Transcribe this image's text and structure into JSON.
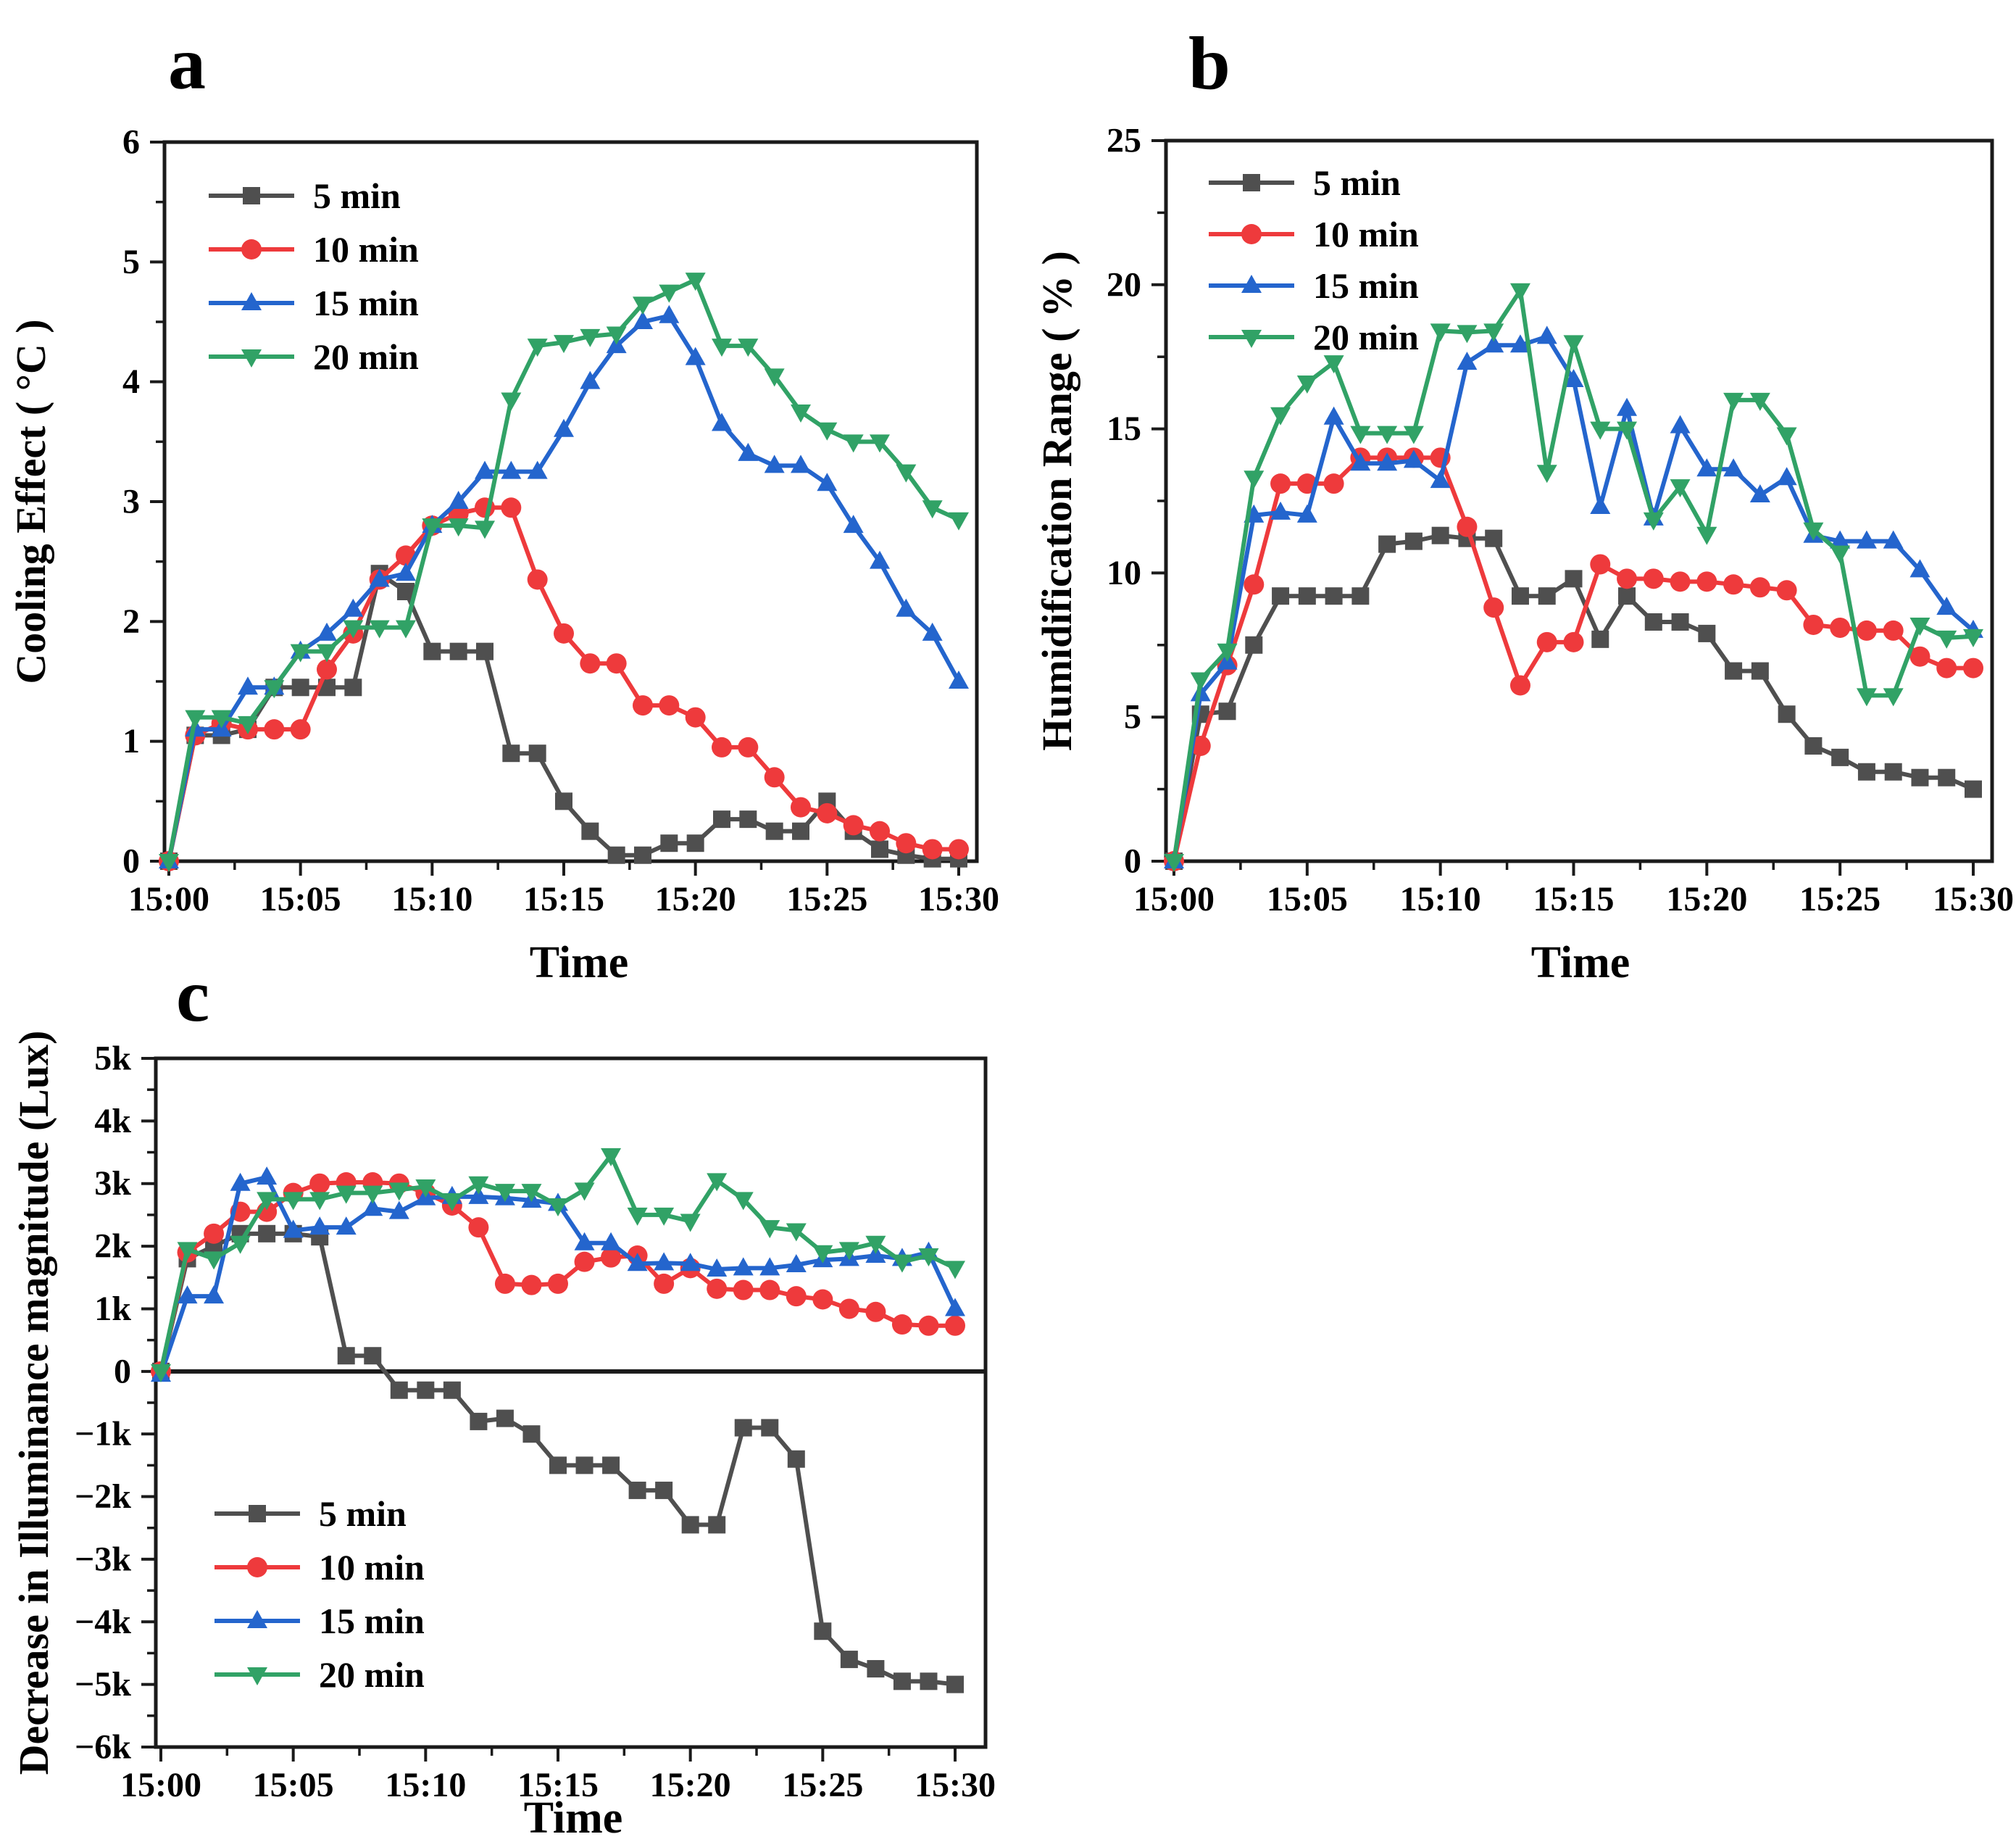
{
  "page": {
    "background": "#ffffff"
  },
  "colors": {
    "frame": "#1a1a1a",
    "series_5min": "#4f4f4f",
    "series_10min": "#ee3a3c",
    "series_15min": "#2465cd",
    "series_20min": "#31a266"
  },
  "chart_data": [
    {
      "type": "line",
      "panel_label": "a",
      "ylabel": "Cooling Effect ( °C )",
      "xlabel": "Time",
      "ylim": [
        0,
        6
      ],
      "grid": false,
      "legend_position": "top-left",
      "y_ticks": [
        {
          "v": 0,
          "label": "0"
        },
        {
          "v": 1,
          "label": "1"
        },
        {
          "v": 2,
          "label": "2"
        },
        {
          "v": 3,
          "label": "3"
        },
        {
          "v": 4,
          "label": "4"
        },
        {
          "v": 5,
          "label": "5"
        },
        {
          "v": 6,
          "label": "6"
        }
      ],
      "x_tick_indices": [
        0,
        5,
        10,
        15,
        20,
        25,
        30
      ],
      "x_tick_labels": [
        "15:00",
        "15:05",
        "15:10",
        "15:15",
        "15:20",
        "15:25",
        "15:30"
      ],
      "zero_line": false,
      "series": [
        {
          "name": "5  min",
          "marker": "square",
          "color": "#4f4f4f",
          "values": [
            0,
            1.05,
            1.05,
            1.1,
            1.45,
            1.45,
            1.45,
            1.45,
            2.4,
            2.25,
            1.75,
            1.75,
            1.75,
            0.9,
            0.9,
            0.5,
            0.25,
            0.05,
            0.05,
            0.15,
            0.15,
            0.35,
            0.35,
            0.25,
            0.25,
            0.5,
            0.25,
            0.1,
            0.05,
            0.02,
            0.02
          ]
        },
        {
          "name": "10 min",
          "marker": "circle",
          "color": "#ee3a3c",
          "values": [
            0,
            1.05,
            1.15,
            1.1,
            1.1,
            1.1,
            1.6,
            1.9,
            2.35,
            2.55,
            2.8,
            2.9,
            2.95,
            2.95,
            2.35,
            1.9,
            1.65,
            1.65,
            1.3,
            1.3,
            1.2,
            0.95,
            0.95,
            0.7,
            0.45,
            0.4,
            0.3,
            0.25,
            0.15,
            0.1,
            0.1
          ]
        },
        {
          "name": "15 min",
          "marker": "triangle-up",
          "color": "#2465cd",
          "values": [
            0,
            1.1,
            1.1,
            1.45,
            1.45,
            1.75,
            1.9,
            2.1,
            2.35,
            2.4,
            2.8,
            3.0,
            3.25,
            3.25,
            3.25,
            3.6,
            4.0,
            4.3,
            4.5,
            4.55,
            4.2,
            3.65,
            3.4,
            3.3,
            3.3,
            3.15,
            2.8,
            2.5,
            2.1,
            1.9,
            1.5
          ]
        },
        {
          "name": "20 min",
          "marker": "triangle-down",
          "color": "#31a266",
          "values": [
            0,
            1.2,
            1.2,
            1.15,
            1.45,
            1.75,
            1.75,
            1.95,
            1.95,
            1.95,
            2.8,
            2.8,
            2.78,
            3.85,
            4.3,
            4.33,
            4.38,
            4.4,
            4.65,
            4.75,
            4.85,
            4.3,
            4.3,
            4.05,
            3.75,
            3.6,
            3.5,
            3.5,
            3.25,
            2.95,
            2.85
          ]
        }
      ]
    },
    {
      "type": "line",
      "panel_label": "b",
      "ylabel": "Humidification Range ( % )",
      "xlabel": "Time",
      "ylim": [
        0,
        25
      ],
      "grid": false,
      "legend_position": "top-left",
      "y_ticks": [
        {
          "v": 0,
          "label": "0"
        },
        {
          "v": 5,
          "label": "5"
        },
        {
          "v": 10,
          "label": "10"
        },
        {
          "v": 15,
          "label": "15"
        },
        {
          "v": 20,
          "label": "20"
        },
        {
          "v": 25,
          "label": "25"
        }
      ],
      "x_tick_indices": [
        0,
        5,
        10,
        15,
        20,
        25,
        30
      ],
      "x_tick_labels": [
        "15:00",
        "15:05",
        "15:10",
        "15:15",
        "15:20",
        "15:25",
        "15:30"
      ],
      "zero_line": false,
      "series": [
        {
          "name": "5  min",
          "marker": "square",
          "color": "#4f4f4f",
          "values": [
            0,
            5.1,
            5.2,
            7.5,
            9.2,
            9.2,
            9.2,
            9.2,
            11.0,
            11.1,
            11.3,
            11.2,
            11.2,
            9.2,
            9.2,
            9.8,
            7.7,
            9.2,
            8.3,
            8.3,
            7.9,
            6.6,
            6.6,
            5.1,
            4.0,
            3.6,
            3.1,
            3.1,
            2.9,
            2.9,
            2.5
          ]
        },
        {
          "name": "10 min",
          "marker": "circle",
          "color": "#ee3a3c",
          "values": [
            0,
            4.0,
            6.8,
            9.6,
            13.1,
            13.1,
            13.1,
            14.0,
            14.0,
            14.0,
            14.0,
            11.6,
            8.8,
            6.1,
            7.6,
            7.6,
            10.3,
            9.8,
            9.8,
            9.7,
            9.7,
            9.6,
            9.5,
            9.4,
            8.2,
            8.1,
            8.0,
            8.0,
            7.1,
            6.7,
            6.7
          ]
        },
        {
          "name": "15 min",
          "marker": "triangle-up",
          "color": "#2465cd",
          "values": [
            0,
            5.8,
            6.9,
            12.0,
            12.1,
            12.0,
            15.4,
            13.8,
            13.8,
            13.9,
            13.2,
            17.3,
            17.9,
            17.9,
            18.2,
            16.7,
            12.3,
            15.7,
            11.9,
            15.1,
            13.6,
            13.6,
            12.7,
            13.3,
            11.3,
            11.1,
            11.1,
            11.1,
            10.1,
            8.8,
            8.0
          ]
        },
        {
          "name": "20 min",
          "marker": "triangle-down",
          "color": "#31a266",
          "values": [
            0,
            6.3,
            7.3,
            13.3,
            15.5,
            16.6,
            17.3,
            14.85,
            14.85,
            14.85,
            18.4,
            18.35,
            18.4,
            19.8,
            13.5,
            18.0,
            15.0,
            15.0,
            11.85,
            13.0,
            11.35,
            16.0,
            16.0,
            14.8,
            11.5,
            10.7,
            5.75,
            5.75,
            8.2,
            7.75,
            7.8
          ]
        }
      ]
    },
    {
      "type": "line",
      "panel_label": "c",
      "ylabel": "Decrease in Illuminance magnitude (Lux)",
      "xlabel": "Time",
      "ylim": [
        -6,
        5
      ],
      "grid": false,
      "legend_position": "bottom-left",
      "y_ticks": [
        {
          "v": 5,
          "label": "5k"
        },
        {
          "v": 4,
          "label": "4k"
        },
        {
          "v": 3,
          "label": "3k"
        },
        {
          "v": 2,
          "label": "2k"
        },
        {
          "v": 1,
          "label": "1k"
        },
        {
          "v": 0,
          "label": "0"
        },
        {
          "v": -1,
          "label": "−1k"
        },
        {
          "v": -2,
          "label": "−2k"
        },
        {
          "v": -3,
          "label": "−3k"
        },
        {
          "v": -4,
          "label": "−4k"
        },
        {
          "v": -5,
          "label": "−5k"
        },
        {
          "v": -6,
          "label": "−6k"
        }
      ],
      "x_tick_indices": [
        0,
        5,
        10,
        15,
        20,
        25,
        30
      ],
      "x_tick_labels": [
        "15:00",
        "15:05",
        "15:10",
        "15:15",
        "15:20",
        "15:25",
        "15:30"
      ],
      "zero_line": true,
      "series": [
        {
          "name": "5 min",
          "marker": "square",
          "color": "#4f4f4f",
          "values": [
            0,
            1.8,
            2.0,
            2.2,
            2.2,
            2.2,
            2.15,
            0.25,
            0.25,
            -0.3,
            -0.3,
            -0.3,
            -0.8,
            -0.75,
            -1.0,
            -1.5,
            -1.5,
            -1.5,
            -1.9,
            -1.9,
            -2.45,
            -2.45,
            -0.9,
            -0.9,
            -1.4,
            -4.15,
            -4.6,
            -4.75,
            -4.95,
            -4.95,
            -5.0
          ]
        },
        {
          "name": "10 min",
          "marker": "circle",
          "color": "#ee3a3c",
          "values": [
            0,
            1.9,
            2.2,
            2.55,
            2.55,
            2.85,
            3.0,
            3.02,
            3.02,
            3.0,
            2.85,
            2.65,
            2.3,
            1.4,
            1.38,
            1.4,
            1.75,
            1.82,
            1.85,
            1.4,
            1.65,
            1.32,
            1.3,
            1.3,
            1.2,
            1.15,
            1.0,
            0.95,
            0.75,
            0.73,
            0.73
          ]
        },
        {
          "name": "15 min",
          "marker": "triangle-up",
          "color": "#2465cd",
          "values": [
            -0.05,
            1.2,
            1.2,
            3.0,
            3.1,
            2.25,
            2.3,
            2.3,
            2.6,
            2.55,
            2.77,
            2.79,
            2.79,
            2.77,
            2.73,
            2.68,
            2.05,
            2.05,
            1.72,
            1.73,
            1.72,
            1.63,
            1.65,
            1.65,
            1.7,
            1.78,
            1.8,
            1.85,
            1.8,
            1.9,
            1.0
          ]
        },
        {
          "name": "20 min",
          "marker": "triangle-down",
          "color": "#31a266",
          "values": [
            0,
            1.95,
            1.8,
            2.05,
            2.75,
            2.75,
            2.75,
            2.85,
            2.85,
            2.9,
            2.95,
            2.73,
            3.0,
            2.88,
            2.88,
            2.65,
            2.9,
            3.45,
            2.5,
            2.5,
            2.4,
            3.05,
            2.75,
            2.3,
            2.25,
            1.9,
            1.95,
            2.05,
            1.75,
            1.85,
            1.65
          ]
        }
      ]
    }
  ]
}
